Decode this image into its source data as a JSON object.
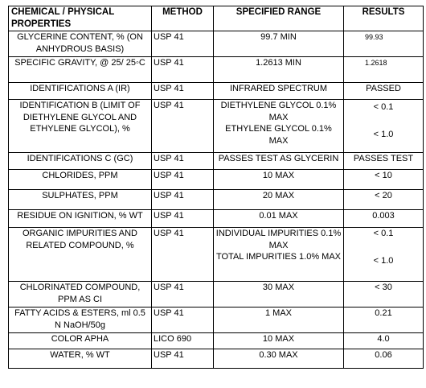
{
  "table": {
    "headers": [
      "CHEMICAL / PHYSICAL PROPERTIES",
      "METHOD",
      "SPECIFIED RANGE",
      "RESULTS"
    ],
    "rows": [
      {
        "property": "GLYCERINE CONTENT, % (ON ANHYDROUS BASIS)",
        "method": "USP 41",
        "range": [
          "99.7 MIN"
        ],
        "result": [
          "99.93"
        ]
      },
      {
        "property": "SPECIFIC GRAVITY, @ 25/ 25◦C",
        "method": "USP 41",
        "range": [
          "1.2613 MIN"
        ],
        "result": [
          "1.2618"
        ]
      },
      {
        "property": "IDENTIFICATIONS A (IR)",
        "method": "USP 41",
        "range": [
          "INFRARED SPECTRUM"
        ],
        "result": [
          "PASSED"
        ]
      },
      {
        "property": "IDENTIFICATION B (LIMIT OF DIETHYLENE GLYCOL AND ETHYLENE GLYCOL), %",
        "method": "USP 41",
        "range": [
          "DIETHYLENE GLYCOL 0.1% MAX",
          "ETHYLENE GLYCOL 0.1% MAX"
        ],
        "result": [
          "< 0.1",
          "< 1.0"
        ]
      },
      {
        "property": "IDENTIFICATIONS C (GC)",
        "method": "USP 41",
        "range": [
          "PASSES TEST AS GLYCERIN"
        ],
        "result": [
          "PASSES TEST"
        ]
      },
      {
        "property": "CHLORIDES, PPM",
        "method": "USP 41",
        "range": [
          "10 MAX"
        ],
        "result": [
          "< 10"
        ]
      },
      {
        "property": "SULPHATES, PPM",
        "method": "USP 41",
        "range": [
          "20 MAX"
        ],
        "result": [
          "< 20"
        ]
      },
      {
        "property": "RESIDUE ON IGNITION, % WT",
        "method": "USP 41",
        "range": [
          "0.01 MAX"
        ],
        "result": [
          "0.003"
        ]
      },
      {
        "property": "ORGANIC IMPURITIES AND RELATED COMPOUND, %",
        "method": "USP 41",
        "range": [
          "INDIVIDUAL IMPURITIES 0.1% MAX",
          "TOTAL IMPURITIES 1.0% MAX"
        ],
        "result": [
          "< 0.1",
          "< 1.0"
        ]
      },
      {
        "property": "CHLORINATED COMPOUND, PPM AS CI",
        "method": "USP 41",
        "range": [
          "30 MAX"
        ],
        "result": [
          "< 30"
        ]
      },
      {
        "property": "FATTY ACIDS & ESTERS, ml 0.5 N NaOH/50g",
        "method": "USP 41",
        "range": [
          "1 MAX"
        ],
        "result": [
          "0.21"
        ]
      },
      {
        "property": "COLOR APHA",
        "method": "LICO 690",
        "range": [
          "10 MAX"
        ],
        "result": [
          "4.0"
        ]
      },
      {
        "property": "WATER, % WT",
        "method": "USP 41",
        "range": [
          "0.30 MAX"
        ],
        "result": [
          "0.06"
        ]
      }
    ]
  }
}
